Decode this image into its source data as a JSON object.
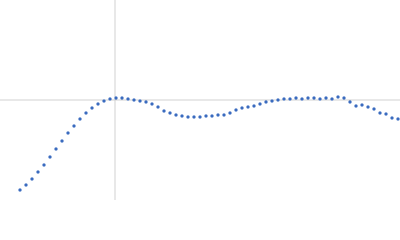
{
  "chart_data": {
    "type": "scatter",
    "color": "#3a6bbf",
    "xlim": [
      -115,
      285
    ],
    "ylim": [
      -100,
      100
    ],
    "x": [
      -95,
      -89,
      -83,
      -77,
      -71,
      -65,
      -59,
      -53,
      -47,
      -41,
      -35,
      -29,
      -23,
      -17,
      -11,
      -5,
      1,
      7,
      13,
      19,
      25,
      31,
      37,
      43,
      49,
      55,
      61,
      67,
      73,
      79,
      85,
      91,
      97,
      103,
      109,
      115,
      121,
      127,
      133,
      139,
      145,
      151,
      157,
      163,
      169,
      175,
      181,
      187,
      193,
      199,
      205,
      211,
      217,
      223,
      229,
      235,
      241,
      247,
      253,
      259,
      265,
      271,
      277,
      283
    ],
    "values": [
      -90,
      -85,
      -79,
      -72,
      -65,
      -57,
      -49,
      -41,
      -33,
      -26,
      -19,
      -13,
      -8,
      -4,
      -1,
      1,
      2,
      2,
      1,
      0,
      -1,
      -2,
      -4,
      -7,
      -11,
      -13,
      -15,
      -16,
      -17,
      -17,
      -17,
      -16,
      -16,
      -15,
      -15,
      -13,
      -10,
      -8,
      -7,
      -6,
      -4,
      -2,
      -1,
      0,
      1,
      1,
      2,
      1,
      2,
      2,
      1,
      2,
      1,
      3,
      2,
      -2,
      -6,
      -5,
      -7,
      -9,
      -13,
      -14,
      -18,
      -19
    ]
  }
}
